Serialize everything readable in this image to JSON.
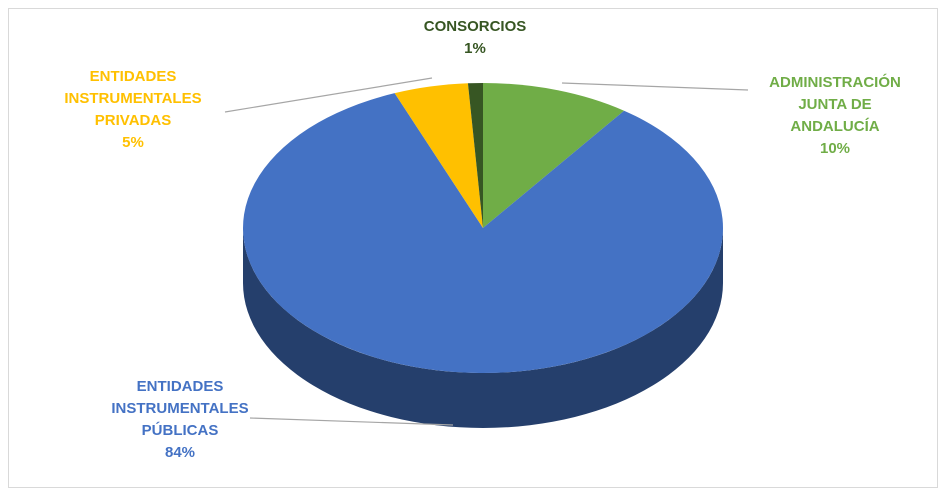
{
  "chart_data": {
    "type": "pie",
    "categories": [
      "ADMINISTRACIÓN JUNTA DE ANDALUCÍA",
      "ENTIDADES INSTRUMENTALES PÚBLICAS",
      "ENTIDADES INSTRUMENTALES PRIVADAS",
      "CONSORCIOS"
    ],
    "values": [
      10,
      84,
      5,
      1
    ],
    "value_labels": [
      "10%",
      "84%",
      "5%",
      "1%"
    ],
    "colors": [
      "#70ad47",
      "#4472c4",
      "#ffc000",
      "#375623"
    ]
  }
}
